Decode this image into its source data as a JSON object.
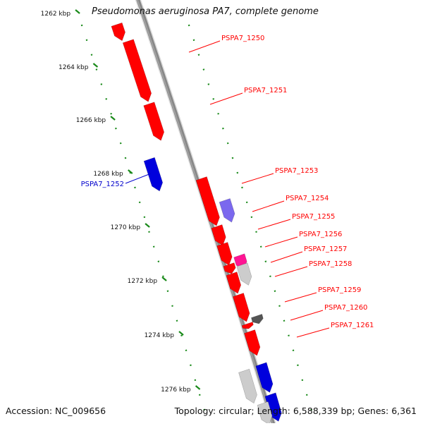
{
  "title": "Pseudomonas aeruginosa PA7, complete genome",
  "footer": {
    "accession": "Accession: NC_009656",
    "topology": "Topology: circular; Length: 6,588,339 bp; Genes: 6,361"
  },
  "colors": {
    "backbone": "#888888",
    "scale_ticks": "#1a8a1a",
    "forward_gene": "#ff0000",
    "reverse_gene": "#0000dd",
    "forward_label": "#ff0000",
    "reverse_label": "#0000cc",
    "tick_label": "#111111",
    "hypothetical": "#cccccc",
    "rna": "#ff1493",
    "other": "#7b68ee"
  },
  "scale": {
    "unit": "kbp",
    "ticks": [
      {
        "label": "1262 kbp"
      },
      {
        "label": "1264 kbp"
      },
      {
        "label": "1266 kbp"
      },
      {
        "label": "1268 kbp"
      },
      {
        "label": "1270 kbp"
      },
      {
        "label": "1272 kbp"
      },
      {
        "label": "1274 kbp"
      },
      {
        "label": "1276 kbp"
      }
    ]
  },
  "gene_labels": [
    {
      "text": "PSPA7_1250",
      "strand": "forward"
    },
    {
      "text": "PSPA7_1251",
      "strand": "forward"
    },
    {
      "text": "PSPA7_1252",
      "strand": "reverse"
    },
    {
      "text": "PSPA7_1253",
      "strand": "forward"
    },
    {
      "text": "PSPA7_1254",
      "strand": "forward"
    },
    {
      "text": "PSPA7_1255",
      "strand": "forward"
    },
    {
      "text": "PSPA7_1256",
      "strand": "forward"
    },
    {
      "text": "PSPA7_1257",
      "strand": "forward"
    },
    {
      "text": "PSPA7_1258",
      "strand": "forward"
    },
    {
      "text": "PSPA7_1259",
      "strand": "forward"
    },
    {
      "text": "PSPA7_1260",
      "strand": "forward"
    },
    {
      "text": "PSPA7_1261",
      "strand": "forward"
    }
  ]
}
